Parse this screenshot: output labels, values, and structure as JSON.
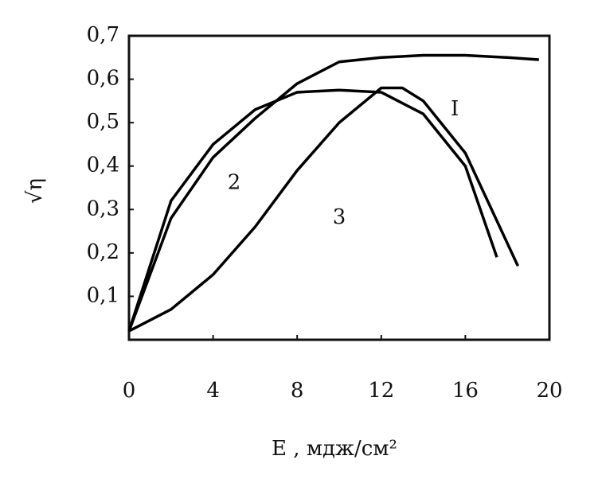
{
  "chart_data": {
    "type": "line",
    "xlabel": "E , мдж/см²",
    "ylabel": "√η",
    "xlim": [
      0,
      20
    ],
    "ylim": [
      0,
      0.7
    ],
    "xticks": [
      0,
      4,
      8,
      12,
      16,
      20
    ],
    "yticks": [
      {
        "value": 0.1,
        "label": "0,1"
      },
      {
        "value": 0.2,
        "label": "0,2"
      },
      {
        "value": 0.3,
        "label": "0,3"
      },
      {
        "value": 0.4,
        "label": "0,4"
      },
      {
        "value": 0.5,
        "label": "0,5"
      },
      {
        "value": 0.6,
        "label": "0,6"
      },
      {
        "value": 0.7,
        "label": "0,7"
      }
    ],
    "grid": false,
    "series": [
      {
        "name": "I",
        "color": "#000000",
        "x": [
          0,
          2,
          4,
          6,
          8,
          10,
          12,
          14,
          16,
          18,
          19.5
        ],
        "values": [
          0.02,
          0.28,
          0.42,
          0.51,
          0.59,
          0.64,
          0.65,
          0.655,
          0.655,
          0.65,
          0.645
        ]
      },
      {
        "name": "2",
        "color": "#000000",
        "x": [
          0,
          2,
          4,
          6,
          8,
          10,
          12,
          14,
          16,
          17.5
        ],
        "values": [
          0.02,
          0.32,
          0.45,
          0.53,
          0.57,
          0.575,
          0.57,
          0.52,
          0.4,
          0.19
        ]
      },
      {
        "name": "3",
        "color": "#000000",
        "x": [
          0,
          2,
          4,
          6,
          8,
          10,
          12,
          13,
          14,
          16,
          18.5
        ],
        "values": [
          0.02,
          0.07,
          0.15,
          0.26,
          0.39,
          0.5,
          0.58,
          0.58,
          0.55,
          0.43,
          0.17
        ]
      }
    ]
  }
}
